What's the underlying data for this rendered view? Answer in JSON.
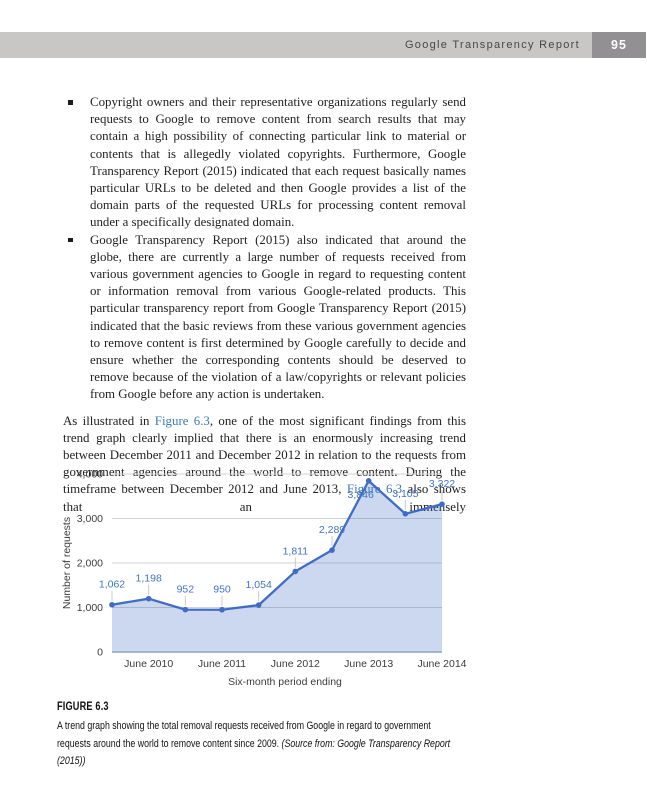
{
  "header": {
    "title": "Google Transparency Report",
    "page_number": "95",
    "bar_color": "#c8c7c5",
    "box_color": "#929092"
  },
  "bullets": [
    "Copyright owners and their representative organizations regularly send requests to Google to remove content from search results that may contain a high possibility of connecting particular link to material or contents that is allegedly violated copyrights. Furthermore, Google Transparency Report (2015) indicated that each request basically names particular URLs to be deleted and then Google provides a list of the domain parts of the requested URLs for processing content removal under a specifically designated domain.",
    "Google Transparency Report (2015) also indicated that around the globe, there are currently a large number of requests received from various government agencies to Google in regard to requesting content or information removal from various Google-related products. This particular transparency report from Google Transparency Report (2015) indicated that the basic reviews from these various government agencies to remove content is first determined by Google carefully to decide and ensure whether the corresponding contents should be deserved to remove because of the violation of a law/copyrights or relevant policies from Google before any action is undertaken."
  ],
  "paragraph": {
    "link_color": "#3d79b3",
    "segments": [
      {
        "text": "As illustrated in "
      },
      {
        "text": "Figure 6.3",
        "style": "link"
      },
      {
        "text": ", one of the most significant findings from this trend graph clearly implied that there is an enormously increasing trend between December 2011 and December 2012 in relation to the requests from government agencies around the world to remove content. During the timeframe between December 2012 and June 2013, "
      },
      {
        "text": "Figure 6.3",
        "style": "link"
      },
      {
        "text": " also shows that an immensely"
      }
    ]
  },
  "chart_data": {
    "type": "area",
    "title": "",
    "values": [
      1062,
      1198,
      952,
      950,
      1054,
      1811,
      2289,
      3846,
      3105,
      3322
    ],
    "point_labels": [
      "1,062",
      "1,198",
      "952",
      "950",
      "1,054",
      "1,811",
      "2,289",
      "3,846",
      "3,105",
      "3,322"
    ],
    "x_tick_labels": [
      "June 2010",
      "June 2011",
      "June 2012",
      "June 2013",
      "June 2014"
    ],
    "x_tick_point_indices": [
      1,
      3,
      5,
      7,
      9
    ],
    "y_ticks": [
      "0",
      "1,000",
      "2,000",
      "3,000",
      "4,000"
    ],
    "y_tick_values": [
      0,
      1000,
      2000,
      3000,
      4000
    ],
    "ylim": [
      0,
      4000
    ],
    "xlabel": "Six-month period ending",
    "ylabel": "Number of requests",
    "grid": "on",
    "line_color": "#3f6dc5",
    "fill_color": "rgba(73,114,196,0.28)",
    "label_color": "#4273c8",
    "grid_color": "#d2d2d2",
    "axis_line_color": "#93a2c0",
    "axis_text_color": "#3c3c3c",
    "legend": "none"
  },
  "figure_caption": {
    "label": "FIGURE 6.3",
    "text": "A trend graph showing the total removal requests received from Google in regard to government requests around the world to remove content since 2009. ",
    "source": "(Source from: Google Transparency Report (2015))"
  }
}
